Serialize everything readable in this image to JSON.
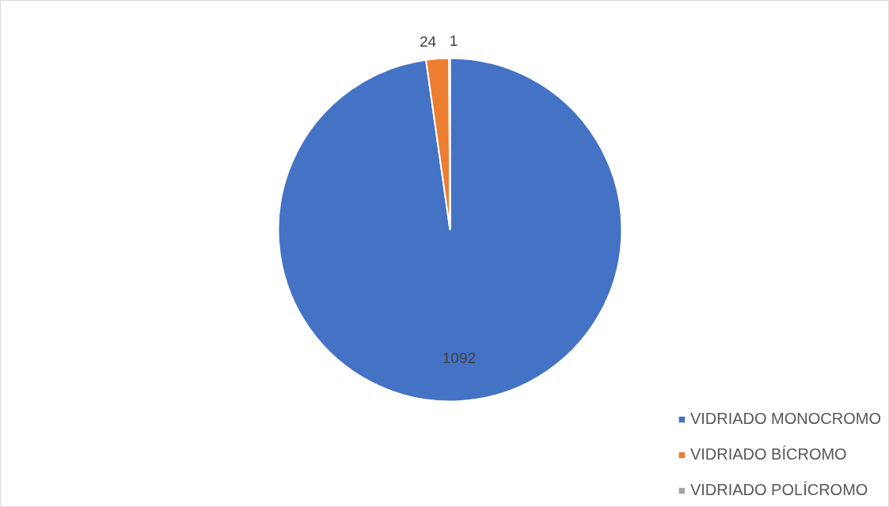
{
  "chart_data": {
    "type": "pie",
    "categories": [
      "VIDRIADO MONOCROMO",
      "VIDRIADO BÍCROMO",
      "VIDRIADO POLÍCROMO"
    ],
    "values": [
      1092,
      24,
      1
    ],
    "colors": [
      "#4472c4",
      "#ed7d31",
      "#a5a5a5"
    ],
    "data_labels": true,
    "legend": "bottom right"
  }
}
